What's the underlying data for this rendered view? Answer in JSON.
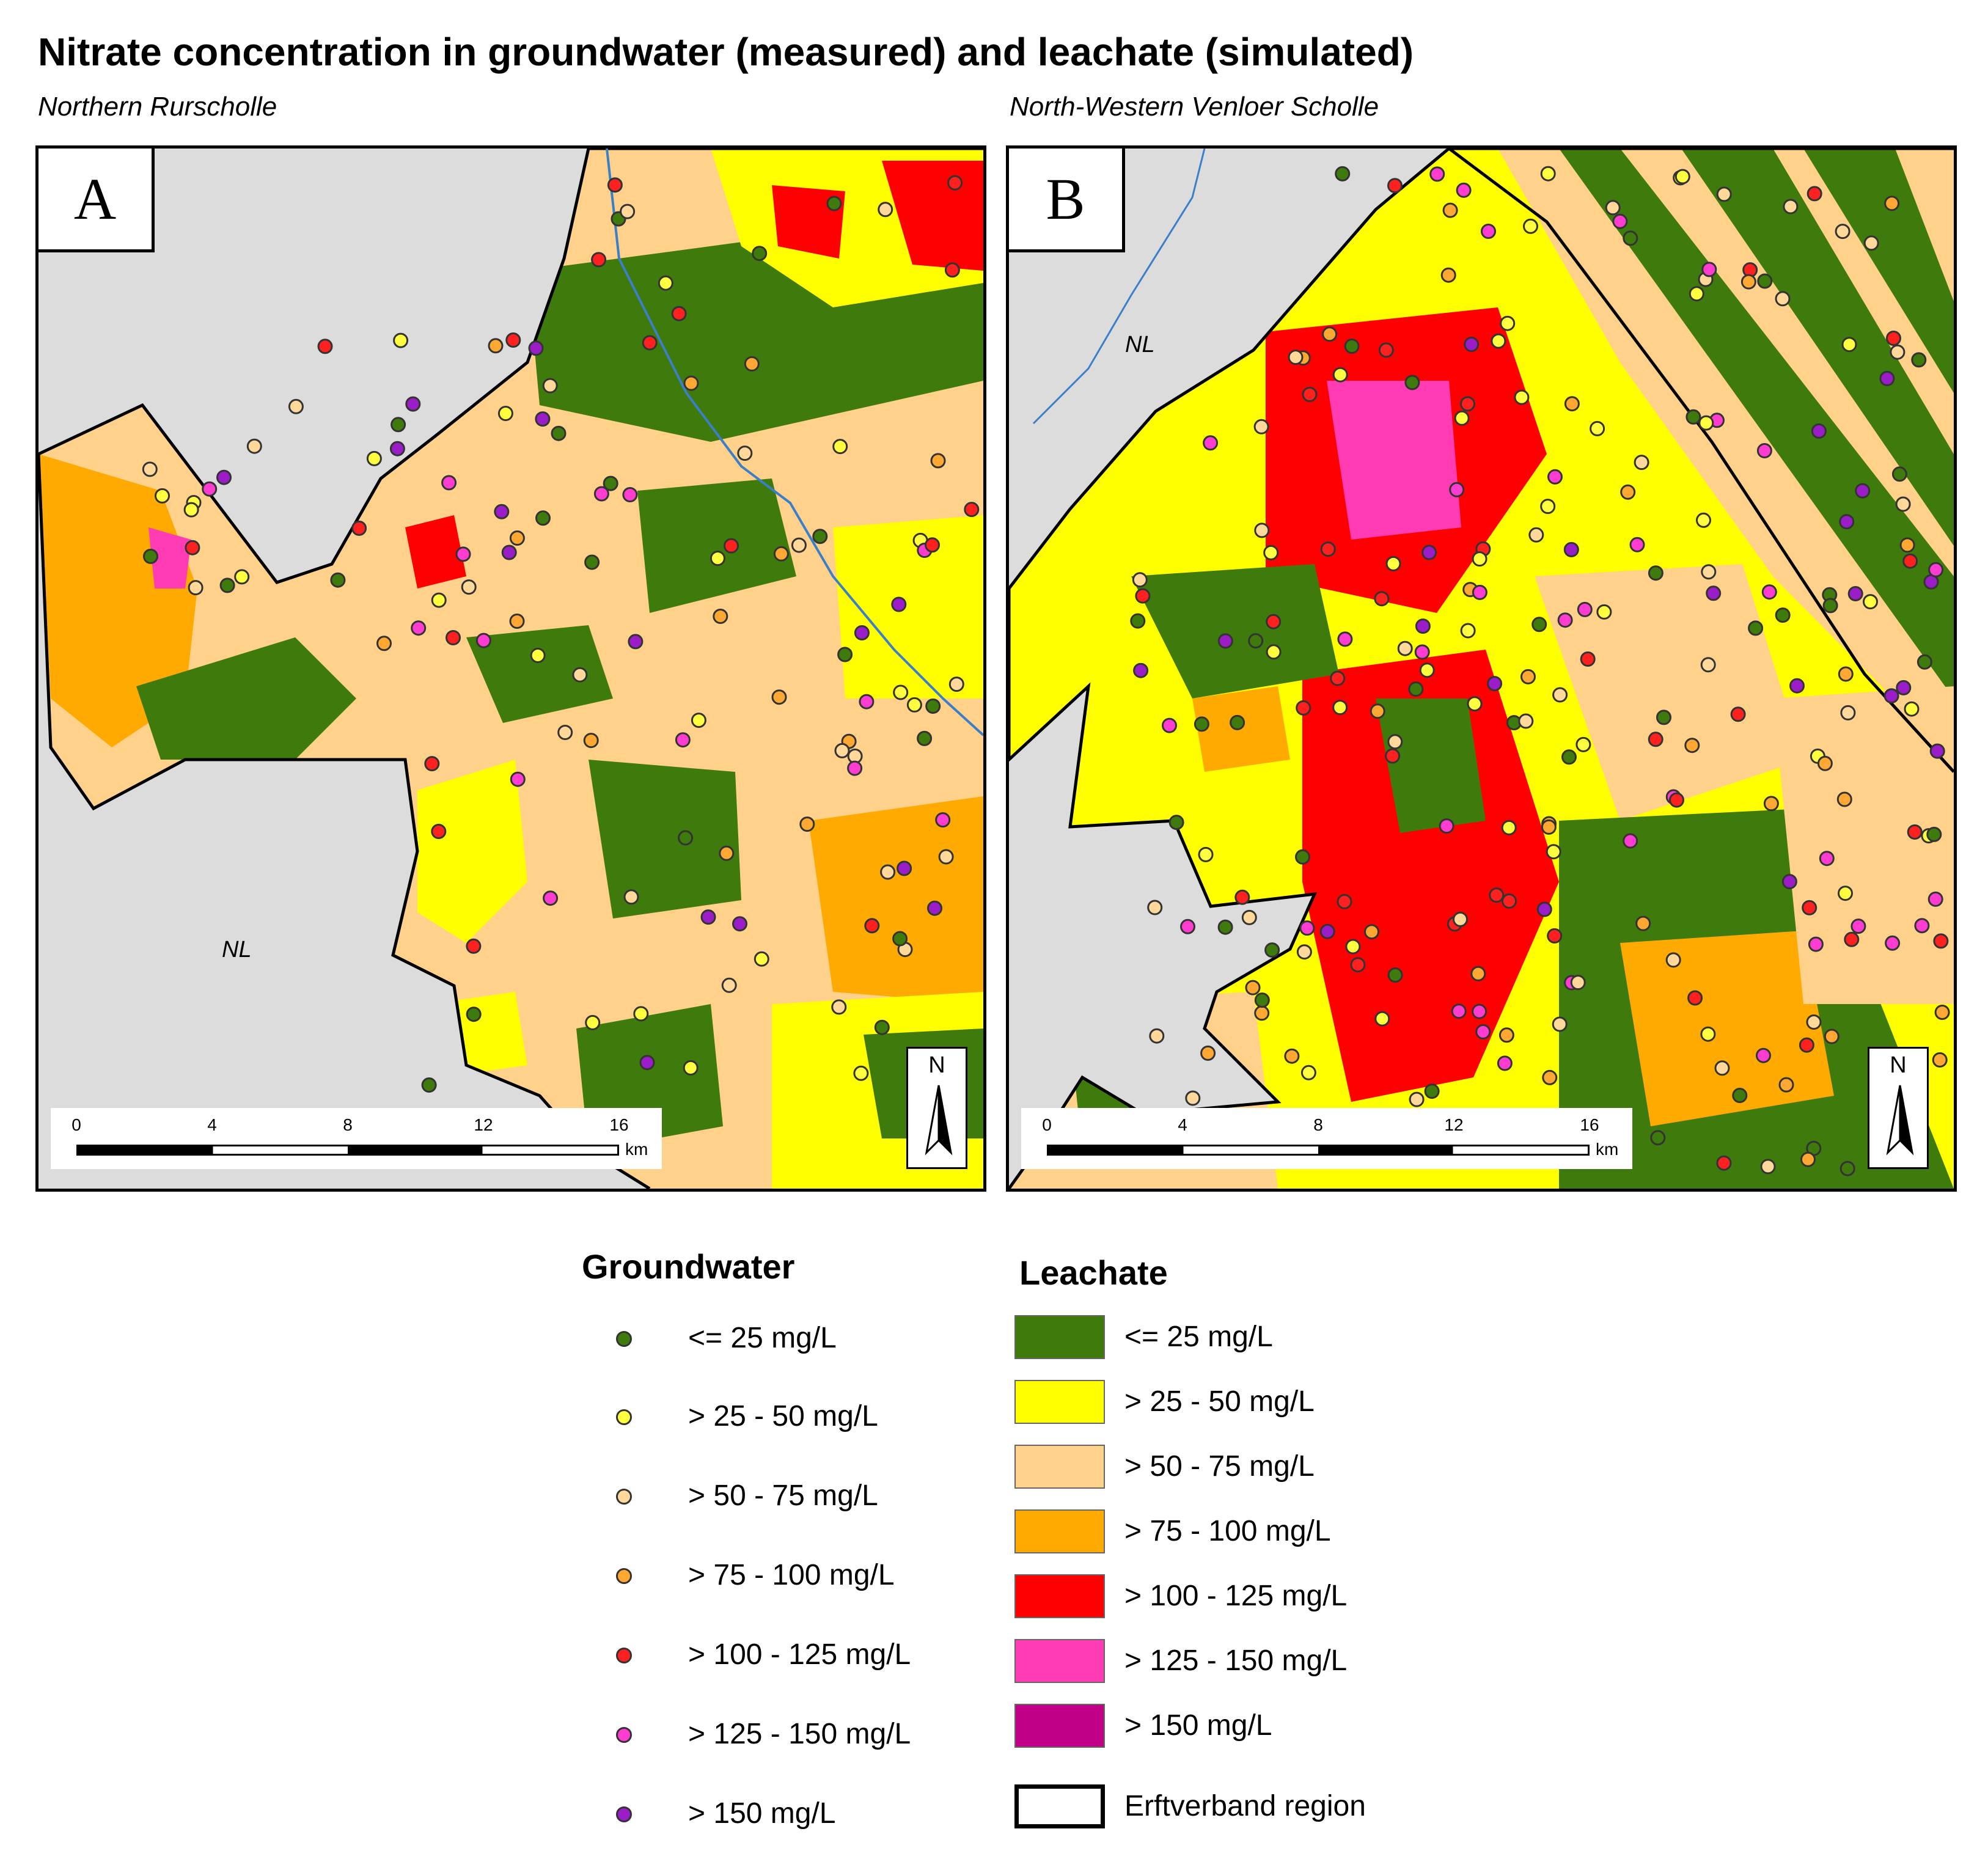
{
  "title": "Nitrate concentration in groundwater (measured) and leachate (simulated)",
  "panels": {
    "a": {
      "letter": "A",
      "subtitle": "Northern Rurscholle",
      "nl_label": "NL"
    },
    "b": {
      "letter": "B",
      "subtitle": "North-Western Venloer Scholle",
      "nl_label": "NL"
    }
  },
  "scale": {
    "ticks": [
      "0",
      "4",
      "8",
      "12",
      "16"
    ],
    "unit": "km"
  },
  "north_label": "N",
  "colors": {
    "background": "#dcdcdc",
    "river": "#3a7fc8",
    "leachate_le25": "#3f7a0c",
    "leachate_25_50": "#ffff00",
    "leachate_50_75": "#ffd18a",
    "leachate_75_100": "#ffaa00",
    "leachate_100_125": "#ff0000",
    "leachate_125_150": "#ff3cb4",
    "leachate_gt150": "#c00087",
    "gw_le25": "#3f7a0c",
    "gw_25_50": "#ffff40",
    "gw_50_75": "#ffd89a",
    "gw_75_100": "#ffa733",
    "gw_100_125": "#ff2020",
    "gw_125_150": "#ff3cd0",
    "gw_gt150": "#9b1dc8"
  },
  "legend": {
    "groundwater": {
      "heading": "Groundwater",
      "items": [
        {
          "label": "<= 25 mg/L",
          "color": "#3f7a0c"
        },
        {
          "label": "> 25 - 50 mg/L",
          "color": "#ffff40"
        },
        {
          "label": "> 50 - 75 mg/L",
          "color": "#ffd89a"
        },
        {
          "label": "> 75 - 100 mg/L",
          "color": "#ffa733"
        },
        {
          "label": "> 100 - 125 mg/L",
          "color": "#ff2020"
        },
        {
          "label": "> 125 - 150 mg/L",
          "color": "#ff3cd0"
        },
        {
          "label": "> 150 mg/L",
          "color": "#9b1dc8"
        }
      ]
    },
    "leachate": {
      "heading": "Leachate",
      "items": [
        {
          "label": "<= 25 mg/L",
          "color": "#3f7a0c"
        },
        {
          "label": "> 25 - 50 mg/L",
          "color": "#ffff00"
        },
        {
          "label": "> 50 - 75 mg/L",
          "color": "#ffd18a"
        },
        {
          "label": "> 75 - 100 mg/L",
          "color": "#ffaa00"
        },
        {
          "label": "> 100 - 125 mg/L",
          "color": "#ff0000"
        },
        {
          "label": "> 125 - 150 mg/L",
          "color": "#ff3cb4"
        },
        {
          "label": "> 150 mg/L",
          "color": "#c00087"
        }
      ],
      "region_label": "Erftverband region"
    }
  }
}
